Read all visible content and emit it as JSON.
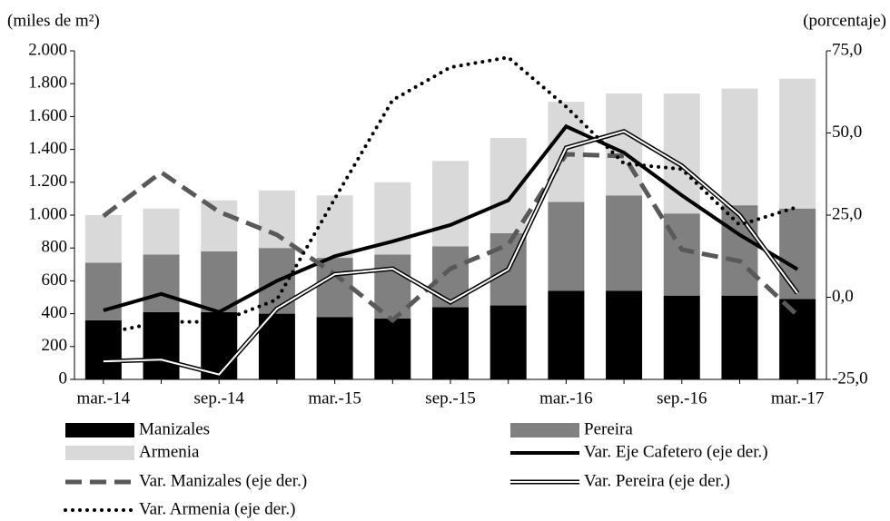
{
  "chart_data": {
    "type": "bar",
    "stacked": true,
    "y_label": "(miles de m²)",
    "y2_label": "(porcentaje)",
    "categories": [
      "mar.-14",
      null,
      "sep.-14",
      null,
      "mar.-15",
      null,
      "sep.-15",
      null,
      "mar.-16",
      null,
      "sep.-16",
      null,
      "mar.-17"
    ],
    "ylim": [
      0,
      2000
    ],
    "yticks": [
      0,
      200,
      400,
      600,
      800,
      {
        "value": 1000,
        "label": "1.000"
      },
      {
        "value": 1200,
        "label": "1.200"
      },
      {
        "value": 1400,
        "label": "1.400"
      },
      {
        "value": 1600,
        "label": "1.600"
      },
      {
        "value": 1800,
        "label": "1.800"
      },
      {
        "value": 2000,
        "label": "2.000"
      }
    ],
    "y2lim": [
      -25,
      75
    ],
    "y2ticks": [
      {
        "value": -25,
        "label": "-25,0"
      },
      {
        "value": 0,
        "label": "0,0"
      },
      {
        "value": 25,
        "label": "25,0"
      },
      {
        "value": 50,
        "label": "50,0"
      },
      {
        "value": 75,
        "label": "75,0"
      }
    ],
    "series": [
      {
        "name": "Manizales",
        "type": "bar",
        "color": "#000000",
        "values": [
          360,
          410,
          410,
          400,
          380,
          370,
          440,
          450,
          540,
          540,
          510,
          510,
          490
        ]
      },
      {
        "name": "Pereira",
        "type": "bar",
        "color": "#808080",
        "values": [
          350,
          350,
          370,
          400,
          360,
          390,
          370,
          440,
          540,
          580,
          500,
          550,
          550
        ]
      },
      {
        "name": "Armenia",
        "type": "bar",
        "color": "#d9d9d9",
        "values": [
          290,
          280,
          310,
          350,
          380,
          440,
          520,
          580,
          610,
          620,
          730,
          710,
          790
        ]
      },
      {
        "name": "Var. Eje Cafetero (eje der.)",
        "type": "line",
        "axis": "y2",
        "style": "solid",
        "color": "#000000",
        "values": [
          -4,
          1,
          -4.5,
          5,
          12.5,
          17,
          22,
          29.5,
          52,
          44,
          31,
          19,
          8.5
        ]
      },
      {
        "name": "Var. Manizales (eje der.)",
        "type": "line",
        "axis": "y2",
        "style": "dashed",
        "color": "#595959",
        "values": [
          24.7,
          38,
          26,
          19,
          7,
          -7,
          8.7,
          16,
          43.5,
          43,
          14.5,
          11,
          -5.5
        ]
      },
      {
        "name": "Var. Pereira (eje der.)",
        "type": "line",
        "axis": "y2",
        "style": "double",
        "color": "#000000",
        "values": [
          -19.5,
          -19,
          -23.5,
          -3.5,
          7,
          8.7,
          -1.5,
          8.5,
          45.5,
          50.5,
          40,
          25,
          1.2
        ]
      },
      {
        "name": "Var. Armenia (eje der.)",
        "type": "line",
        "axis": "y2",
        "style": "dotted",
        "color": "#000000",
        "values": [
          -11,
          -7.5,
          -7.5,
          -0.7,
          30,
          60,
          70,
          73,
          58,
          40.7,
          39,
          22,
          27.5
        ]
      }
    ]
  }
}
